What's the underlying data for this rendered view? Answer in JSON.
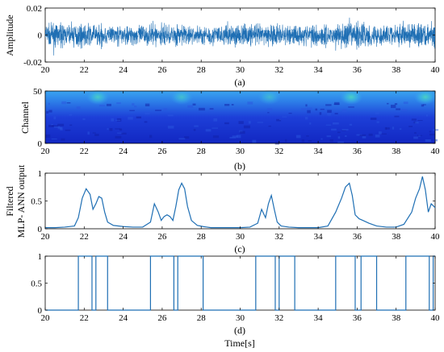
{
  "figure_labels": {
    "xlabel": "Time[s]"
  },
  "chart_data": [
    {
      "type": "line",
      "panel_label": "(a)",
      "ylabel": "Amplitude",
      "xlim": [
        20,
        40
      ],
      "ylim": [
        -0.02,
        0.02
      ],
      "xticks": [
        20,
        22,
        24,
        26,
        28,
        30,
        32,
        34,
        36,
        38,
        40
      ],
      "yticks": [
        -0.02,
        0,
        0.02
      ],
      "ytick_labels": [
        "-0.02",
        "0",
        "0.02"
      ],
      "grid": false,
      "color": "#1f6fb4",
      "envelope": [
        [
          20,
          0.012
        ],
        [
          21,
          0.011
        ],
        [
          22,
          0.012
        ],
        [
          23,
          0.011
        ],
        [
          24,
          0.01
        ],
        [
          25,
          0.011
        ],
        [
          26,
          0.012
        ],
        [
          27,
          0.011
        ],
        [
          28,
          0.01
        ],
        [
          29,
          0.011
        ],
        [
          30,
          0.012
        ],
        [
          31,
          0.011
        ],
        [
          32,
          0.012
        ],
        [
          33,
          0.011
        ],
        [
          34,
          0.012
        ],
        [
          35,
          0.013
        ],
        [
          36,
          0.015
        ],
        [
          37,
          0.012
        ],
        [
          38,
          0.011
        ],
        [
          39,
          0.014
        ],
        [
          40,
          0.012
        ]
      ]
    },
    {
      "type": "heatmap",
      "panel_label": "(b)",
      "ylabel": "Channel",
      "xlim": [
        20,
        40
      ],
      "ylim": [
        0,
        50
      ],
      "xticks": [
        20,
        22,
        24,
        26,
        28,
        30,
        32,
        34,
        36,
        38,
        40
      ],
      "yticks": [
        0,
        50
      ],
      "ytick_labels": [
        "0",
        "50"
      ],
      "hotspots": [
        {
          "t": 22.7,
          "channel_top": 50,
          "channel_bottom": 40,
          "intensity": 0.75
        },
        {
          "t": 27.0,
          "channel_top": 50,
          "channel_bottom": 40,
          "intensity": 0.6
        },
        {
          "t": 31.5,
          "channel_top": 50,
          "channel_bottom": 40,
          "intensity": 0.5
        },
        {
          "t": 35.7,
          "channel_top": 50,
          "channel_bottom": 40,
          "intensity": 0.8
        },
        {
          "t": 39.5,
          "channel_top": 50,
          "channel_bottom": 40,
          "intensity": 0.8
        }
      ]
    },
    {
      "type": "line",
      "panel_label": "(c)",
      "ylabel": [
        "Filtered",
        "MLP- ANN output"
      ],
      "xlim": [
        20,
        40
      ],
      "ylim": [
        0,
        1
      ],
      "xticks": [
        20,
        22,
        24,
        26,
        28,
        30,
        32,
        34,
        36,
        38,
        40
      ],
      "yticks": [
        0,
        0.5,
        1
      ],
      "ytick_labels": [
        "0",
        "0.5",
        "1"
      ],
      "color": "#1f6fb4",
      "x": [
        20,
        20.5,
        21,
        21.5,
        21.7,
        21.9,
        22.1,
        22.3,
        22.45,
        22.6,
        22.75,
        22.9,
        23.05,
        23.2,
        23.5,
        24,
        24.5,
        25,
        25.4,
        25.6,
        25.8,
        25.95,
        26.1,
        26.25,
        26.4,
        26.55,
        26.7,
        26.85,
        27.0,
        27.15,
        27.3,
        27.5,
        27.8,
        28.1,
        28.5,
        29,
        29.5,
        30,
        30.5,
        30.9,
        31.1,
        31.3,
        31.45,
        31.6,
        31.75,
        31.9,
        32.1,
        32.5,
        33,
        33.5,
        34,
        34.5,
        34.9,
        35.2,
        35.4,
        35.6,
        35.75,
        35.9,
        36.1,
        36.3,
        36.6,
        37,
        37.5,
        38,
        38.4,
        38.8,
        39.0,
        39.2,
        39.35,
        39.5,
        39.65,
        39.8,
        40
      ],
      "y": [
        0.02,
        0.02,
        0.03,
        0.05,
        0.2,
        0.55,
        0.72,
        0.62,
        0.35,
        0.45,
        0.58,
        0.55,
        0.3,
        0.12,
        0.06,
        0.04,
        0.03,
        0.03,
        0.12,
        0.45,
        0.3,
        0.15,
        0.22,
        0.25,
        0.22,
        0.15,
        0.4,
        0.7,
        0.82,
        0.72,
        0.4,
        0.15,
        0.06,
        0.04,
        0.02,
        0.02,
        0.02,
        0.02,
        0.03,
        0.1,
        0.35,
        0.2,
        0.45,
        0.6,
        0.35,
        0.12,
        0.05,
        0.03,
        0.02,
        0.02,
        0.02,
        0.05,
        0.3,
        0.55,
        0.75,
        0.82,
        0.6,
        0.25,
        0.18,
        0.15,
        0.1,
        0.05,
        0.03,
        0.03,
        0.08,
        0.3,
        0.55,
        0.72,
        0.94,
        0.7,
        0.3,
        0.45,
        0.38
      ]
    },
    {
      "type": "line",
      "panel_label": "(d)",
      "xlim": [
        20,
        40
      ],
      "ylim": [
        0,
        1
      ],
      "xticks": [
        20,
        22,
        24,
        26,
        28,
        30,
        32,
        34,
        36,
        38,
        40
      ],
      "yticks": [
        0,
        0.5,
        1
      ],
      "ytick_labels": [
        "0",
        "0.5",
        "1"
      ],
      "color": "#1f6fb4",
      "step": true,
      "high_intervals": [
        [
          21.7,
          22.4
        ],
        [
          22.6,
          23.2
        ],
        [
          25.4,
          26.6
        ],
        [
          26.8,
          28.1
        ],
        [
          30.8,
          31.8
        ],
        [
          32.0,
          32.8
        ],
        [
          34.9,
          35.9
        ],
        [
          36.2,
          37.0
        ],
        [
          38.5,
          39.7
        ],
        [
          39.9,
          40
        ]
      ]
    }
  ]
}
